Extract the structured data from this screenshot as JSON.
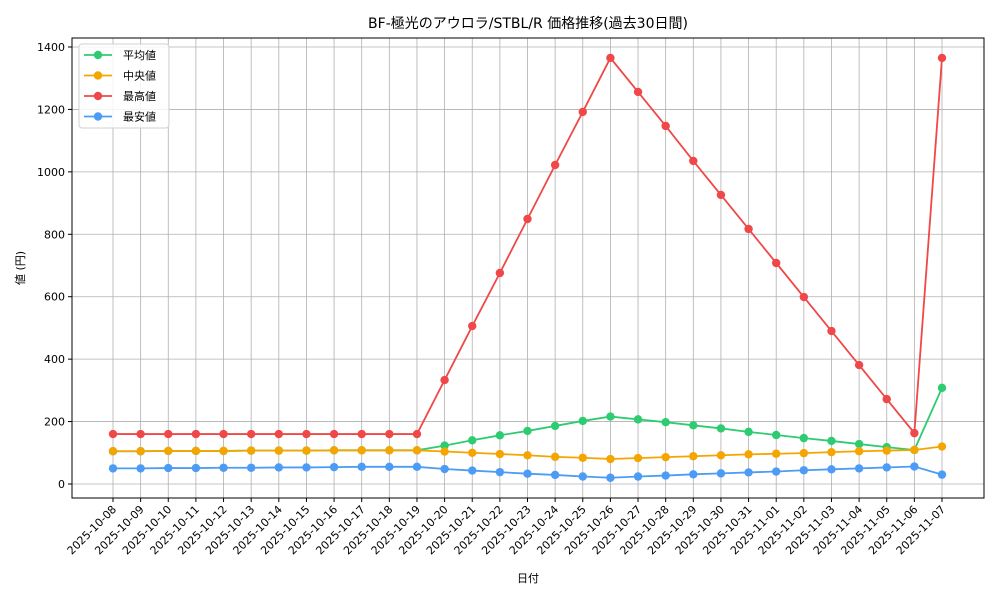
{
  "chart_data": {
    "type": "line",
    "title": "BF-極光のアウロラ/STBL/R 価格推移(過去30日間)",
    "xlabel": "日付",
    "ylabel": "値 (円)",
    "ylim": [
      -45,
      1430
    ],
    "yticks": [
      0,
      200,
      400,
      600,
      800,
      1000,
      1200,
      1400
    ],
    "grid": true,
    "legend_position": "upper left",
    "x": [
      "2025-10-08",
      "2025-10-09",
      "2025-10-10",
      "2025-10-11",
      "2025-10-12",
      "2025-10-13",
      "2025-10-14",
      "2025-10-15",
      "2025-10-16",
      "2025-10-17",
      "2025-10-18",
      "2025-10-19",
      "2025-10-20",
      "2025-10-21",
      "2025-10-22",
      "2025-10-23",
      "2025-10-24",
      "2025-10-25",
      "2025-10-26",
      "2025-10-27",
      "2025-10-28",
      "2025-10-29",
      "2025-10-30",
      "2025-10-31",
      "2025-11-01",
      "2025-11-02",
      "2025-11-03",
      "2025-11-04",
      "2025-11-05",
      "2025-11-06",
      "2025-11-07"
    ],
    "series": [
      {
        "name": "平均値",
        "color": "#2ecc71",
        "values": [
          105,
          105,
          106,
          106,
          106,
          107,
          107,
          107,
          108,
          108,
          108,
          108,
          123,
          140,
          156,
          170,
          186,
          202,
          216,
          207,
          198,
          188,
          178,
          167,
          157,
          147,
          138,
          128,
          118,
          109,
          308
        ]
      },
      {
        "name": "中央値",
        "color": "#f5a500",
        "values": [
          105,
          105,
          106,
          106,
          106,
          107,
          107,
          107,
          108,
          108,
          108,
          108,
          104,
          100,
          96,
          92,
          87,
          84,
          80,
          83,
          86,
          89,
          92,
          95,
          97,
          99,
          102,
          105,
          107,
          109,
          120
        ]
      },
      {
        "name": "最高値",
        "color": "#f04848",
        "values": [
          160,
          160,
          160,
          160,
          160,
          160,
          160,
          160,
          160,
          160,
          160,
          160,
          333,
          506,
          676,
          849,
          1022,
          1192,
          1365,
          1256,
          1147,
          1035,
          926,
          817,
          708,
          599,
          490,
          381,
          272,
          163,
          1365
        ]
      },
      {
        "name": "最安値",
        "color": "#4c9cf5",
        "values": [
          50,
          50,
          51,
          51,
          52,
          52,
          53,
          53,
          54,
          55,
          55,
          55,
          48,
          43,
          38,
          33,
          29,
          24,
          20,
          24,
          27,
          31,
          34,
          37,
          40,
          44,
          47,
          50,
          53,
          56,
          30
        ]
      }
    ]
  }
}
